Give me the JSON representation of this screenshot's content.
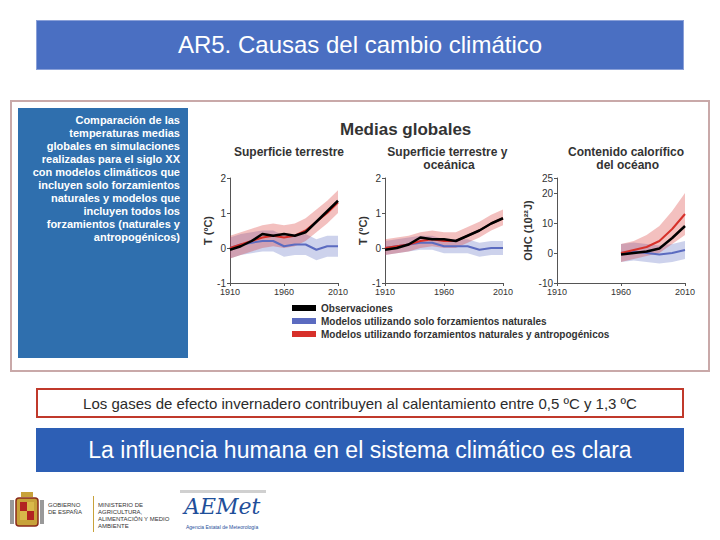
{
  "slide": {
    "title": "AR5. Causas del cambio climático",
    "panel_text": "Comparación de las temperaturas medias globales en simulaciones realizadas para el siglo XX con modelos climáticos que incluyen solo forzamientos naturales y modelos que incluyen todos los forzamientos (naturales y antropogénicos)",
    "figure_title": "Medias globales",
    "caption": "Los gases de efecto invernadero contribuyen al calentamiento entre 0,5 ºC y 1,3 ºC",
    "conclusion": "La influencia humana en el sistema climático es clara",
    "logos": {
      "government": "GOBIERNO DE ESPAÑA",
      "ministry": "MINISTERIO DE AGRICULTURA, ALIMENTACIÓN Y MEDIO AMBIENTE",
      "agency": "AEMet",
      "agency_name": "Agencia Estatal de Meteorología"
    }
  },
  "chart_data": [
    {
      "type": "line",
      "title": "Superficie terrestre",
      "y_label": "T (ºC)",
      "x": [
        1910,
        1920,
        1930,
        1940,
        1950,
        1960,
        1970,
        1980,
        1990,
        2000,
        2010
      ],
      "xlim": [
        1910,
        2010
      ],
      "xticks": [
        1910,
        1960,
        2010
      ],
      "ylim": [
        -1,
        2
      ],
      "yticks": [
        -1,
        0,
        1,
        2
      ],
      "grid": false,
      "series": [
        {
          "name": "Observaciones",
          "color": "#000000",
          "values": [
            -0.05,
            0.05,
            0.2,
            0.4,
            0.35,
            0.4,
            0.35,
            0.45,
            0.75,
            1.05,
            1.35
          ]
        },
        {
          "name": "Modelos utilizando solo forzamientos naturales",
          "color": "#5b6bc0",
          "values": [
            0.0,
            0.1,
            0.15,
            0.2,
            0.2,
            0.05,
            0.1,
            0.1,
            -0.05,
            0.05,
            0.05
          ],
          "lower": [
            -0.3,
            -0.2,
            -0.15,
            -0.1,
            -0.1,
            -0.25,
            -0.2,
            -0.2,
            -0.35,
            -0.25,
            -0.25
          ],
          "upper": [
            0.3,
            0.4,
            0.45,
            0.5,
            0.5,
            0.35,
            0.4,
            0.4,
            0.25,
            0.35,
            0.35
          ]
        },
        {
          "name": "Modelos utilizando forzamientos naturales y antropogénicos",
          "color": "#d7302a",
          "values": [
            0.0,
            0.1,
            0.2,
            0.3,
            0.35,
            0.3,
            0.35,
            0.5,
            0.75,
            1.0,
            1.3
          ],
          "lower": [
            -0.3,
            -0.2,
            -0.1,
            0.0,
            0.05,
            0.0,
            0.05,
            0.2,
            0.45,
            0.7,
            1.0
          ],
          "upper": [
            0.35,
            0.45,
            0.55,
            0.65,
            0.7,
            0.65,
            0.7,
            0.85,
            1.1,
            1.35,
            1.65
          ]
        }
      ]
    },
    {
      "type": "line",
      "title": "Superficie terrestre y oceánica",
      "y_label": "T (ºC)",
      "x": [
        1910,
        1920,
        1930,
        1940,
        1950,
        1960,
        1970,
        1980,
        1990,
        2000,
        2010
      ],
      "xlim": [
        1910,
        2010
      ],
      "xticks": [
        1910,
        1960,
        2010
      ],
      "ylim": [
        -1,
        2
      ],
      "yticks": [
        -1,
        0,
        1,
        2
      ],
      "grid": false,
      "series": [
        {
          "name": "Observaciones",
          "color": "#000000",
          "values": [
            -0.05,
            0.0,
            0.1,
            0.3,
            0.25,
            0.25,
            0.2,
            0.35,
            0.5,
            0.7,
            0.85
          ]
        },
        {
          "name": "Modelos utilizando solo forzamientos naturales",
          "color": "#5b6bc0",
          "values": [
            0.0,
            0.05,
            0.1,
            0.15,
            0.15,
            0.05,
            0.05,
            0.05,
            -0.05,
            0.0,
            0.0
          ],
          "lower": [
            -0.2,
            -0.15,
            -0.1,
            -0.05,
            -0.05,
            -0.15,
            -0.15,
            -0.15,
            -0.25,
            -0.2,
            -0.2
          ],
          "upper": [
            0.2,
            0.25,
            0.3,
            0.35,
            0.35,
            0.25,
            0.25,
            0.25,
            0.15,
            0.2,
            0.2
          ]
        },
        {
          "name": "Modelos utilizando forzamientos naturales y antropogénicos",
          "color": "#d7302a",
          "values": [
            0.0,
            0.05,
            0.1,
            0.2,
            0.25,
            0.2,
            0.2,
            0.35,
            0.5,
            0.7,
            0.85
          ],
          "lower": [
            -0.2,
            -0.15,
            -0.1,
            0.0,
            0.05,
            0.0,
            0.0,
            0.15,
            0.3,
            0.5,
            0.65
          ],
          "upper": [
            0.25,
            0.3,
            0.35,
            0.45,
            0.5,
            0.45,
            0.45,
            0.6,
            0.75,
            0.95,
            1.1
          ]
        }
      ]
    },
    {
      "type": "line",
      "title": "Contenido calorífico del océano",
      "y_label": "OHC (10²²J)",
      "x": [
        1960,
        1970,
        1980,
        1990,
        2000,
        2010
      ],
      "xlim": [
        1910,
        2010
      ],
      "xticks": [
        1910,
        1960,
        2010
      ],
      "ylim": [
        -10,
        25
      ],
      "yticks": [
        -10,
        0,
        10,
        20
      ],
      "grid": false,
      "series": [
        {
          "name": "Observaciones",
          "color": "#000000",
          "values": [
            -0.5,
            0.0,
            0.5,
            1.5,
            5,
            9
          ]
        },
        {
          "name": "Modelos utilizando solo forzamientos naturales",
          "color": "#5b6bc0",
          "values": [
            0,
            0.5,
            0,
            -0.5,
            0,
            1
          ],
          "lower": [
            -3,
            -2.5,
            -3,
            -3.5,
            -3,
            -2
          ],
          "upper": [
            3,
            3.5,
            3,
            2.5,
            3,
            4
          ]
        },
        {
          "name": "Modelos utilizando forzamientos naturales y antropogénicos",
          "color": "#d7302a",
          "values": [
            0,
            1,
            2,
            4,
            8,
            13
          ],
          "lower": [
            -3,
            -2,
            -1,
            0,
            3,
            6
          ],
          "upper": [
            3,
            4,
            6,
            9,
            14,
            20
          ]
        }
      ]
    }
  ]
}
